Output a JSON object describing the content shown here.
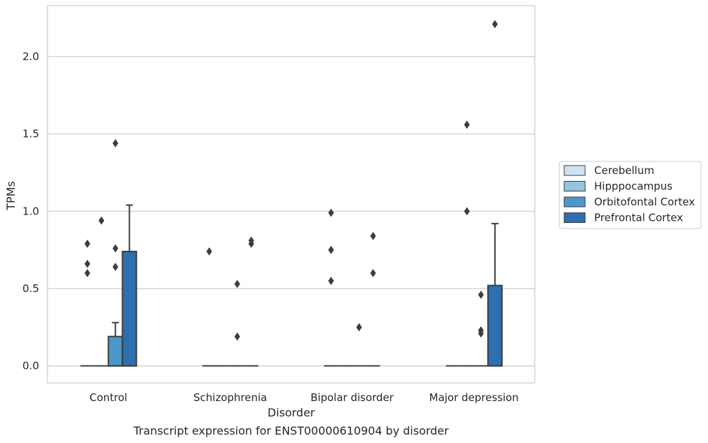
{
  "chart_data": {
    "type": "boxplot",
    "caption": "Transcript expression for ENST00000610904 by disorder",
    "xlabel": "Disorder",
    "ylabel": "TPMs",
    "ylim": [
      -0.11,
      2.33
    ],
    "yticks": [
      0.0,
      0.5,
      1.0,
      1.5,
      2.0
    ],
    "ytick_labels": [
      "0.0",
      "0.5",
      "1.0",
      "1.5",
      "2.0"
    ],
    "grid": "horizontal",
    "legend_position": "right",
    "categories": [
      "Control",
      "Schizophrenia",
      "Bipolar disorder",
      "Major depression"
    ],
    "series": [
      {
        "name": "Cerebellum",
        "color": "#d0e1f2",
        "boxes": [
          {
            "q1": 0,
            "median": 0,
            "q3": 0,
            "whisker_low": 0,
            "whisker_high": 0,
            "outliers": [
              0.79,
              0.66,
              0.6
            ]
          },
          {
            "q1": 0,
            "median": 0,
            "q3": 0,
            "whisker_low": 0,
            "whisker_high": 0,
            "outliers": [
              0.74
            ]
          },
          {
            "q1": 0,
            "median": 0,
            "q3": 0,
            "whisker_low": 0,
            "whisker_high": 0,
            "outliers": [
              0.99,
              0.75,
              0.55
            ]
          },
          {
            "q1": 0,
            "median": 0,
            "q3": 0,
            "whisker_low": 0,
            "whisker_high": 0,
            "outliers": []
          }
        ]
      },
      {
        "name": "Hipppocampus",
        "color": "#94c4df",
        "boxes": [
          {
            "q1": 0,
            "median": 0,
            "q3": 0,
            "whisker_low": 0,
            "whisker_high": 0,
            "outliers": [
              0.94
            ]
          },
          {
            "q1": 0,
            "median": 0,
            "q3": 0,
            "whisker_low": 0,
            "whisker_high": 0,
            "outliers": []
          },
          {
            "q1": 0,
            "median": 0,
            "q3": 0,
            "whisker_low": 0,
            "whisker_high": 0,
            "outliers": []
          },
          {
            "q1": 0,
            "median": 0,
            "q3": 0,
            "whisker_low": 0,
            "whisker_high": 0,
            "outliers": [
              1.56,
              1.0
            ]
          }
        ]
      },
      {
        "name": "Orbitofontal Cortex",
        "color": "#4a98c9",
        "boxes": [
          {
            "q1": 0,
            "median": 0,
            "q3": 0.19,
            "whisker_low": 0,
            "whisker_high": 0.28,
            "outliers": [
              1.44,
              0.76,
              0.64
            ]
          },
          {
            "q1": 0,
            "median": 0,
            "q3": 0,
            "whisker_low": 0,
            "whisker_high": 0,
            "outliers": [
              0.53,
              0.19
            ]
          },
          {
            "q1": 0,
            "median": 0,
            "q3": 0,
            "whisker_low": 0,
            "whisker_high": 0,
            "outliers": [
              0.25
            ]
          },
          {
            "q1": 0,
            "median": 0,
            "q3": 0,
            "whisker_low": 0,
            "whisker_high": 0,
            "outliers": [
              0.46,
              0.23,
              0.21
            ]
          }
        ]
      },
      {
        "name": "Prefrontal Cortex",
        "color": "#2e6faf",
        "boxes": [
          {
            "q1": 0,
            "median": 0,
            "q3": 0.74,
            "whisker_low": 0,
            "whisker_high": 1.04,
            "outliers": []
          },
          {
            "q1": 0,
            "median": 0,
            "q3": 0,
            "whisker_low": 0,
            "whisker_high": 0,
            "outliers": [
              0.81,
              0.79
            ]
          },
          {
            "q1": 0,
            "median": 0,
            "q3": 0,
            "whisker_low": 0,
            "whisker_high": 0,
            "outliers": [
              0.84,
              0.6
            ]
          },
          {
            "q1": 0,
            "median": 0,
            "q3": 0.52,
            "whisker_low": 0,
            "whisker_high": 0.92,
            "outliers": [
              2.21
            ]
          }
        ]
      }
    ]
  }
}
